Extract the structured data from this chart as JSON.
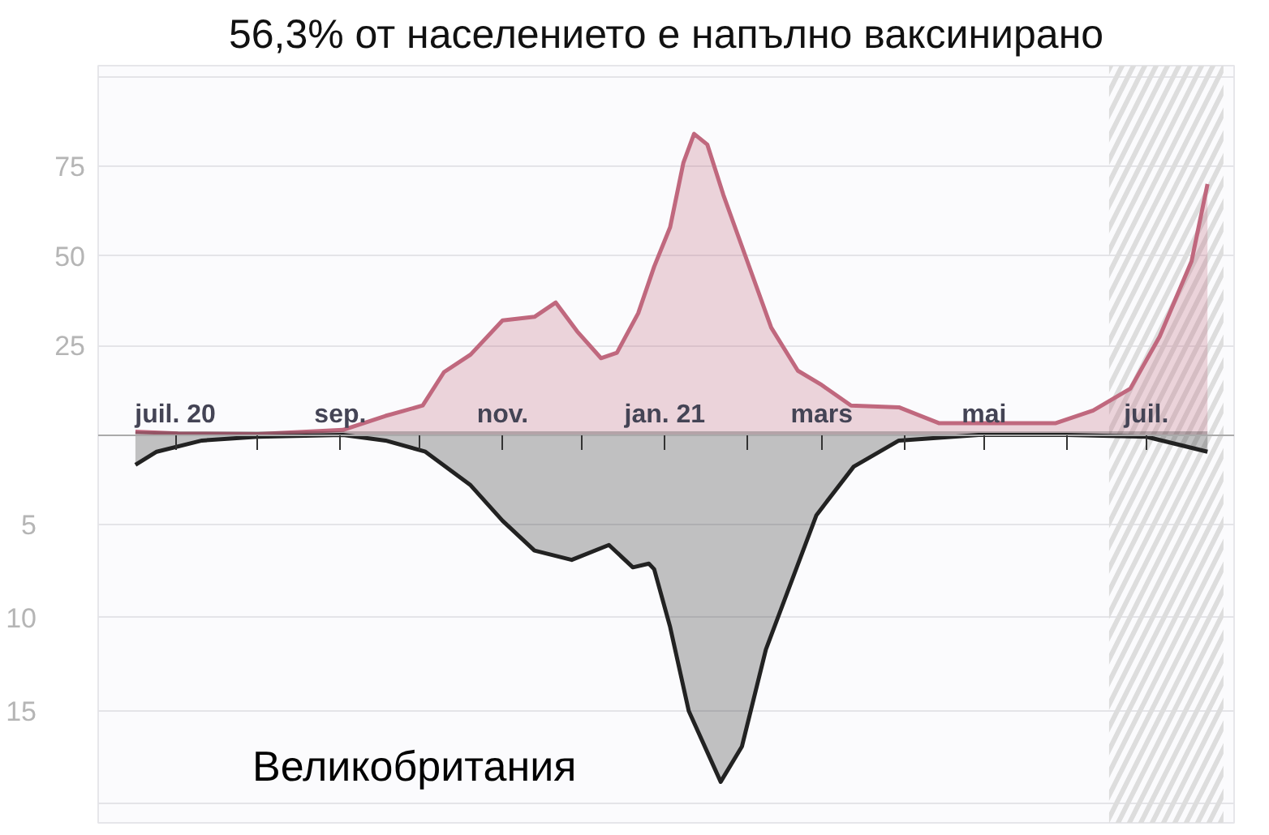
{
  "chart_data": {
    "type": "area",
    "title": "56,3% от населението е напълно ваксинирано",
    "annotations": [
      "Великобритания"
    ],
    "xlim": [
      "2020-06-02",
      "2021-08-03"
    ],
    "xticks": [
      {
        "value": "2020-07-01",
        "label": "juil. 20"
      },
      {
        "value": "2020-08-01",
        "label": null
      },
      {
        "value": "2020-09-01",
        "label": "sep."
      },
      {
        "value": "2020-10-01",
        "label": null
      },
      {
        "value": "2020-11-01",
        "label": "nov."
      },
      {
        "value": "2020-12-01",
        "label": null
      },
      {
        "value": "2021-01-01",
        "label": "jan. 21"
      },
      {
        "value": "2021-02-01",
        "label": null
      },
      {
        "value": "2021-03-01",
        "label": "mars"
      },
      {
        "value": "2021-04-01",
        "label": null
      },
      {
        "value": "2021-05-01",
        "label": "mai"
      },
      {
        "value": "2021-06-01",
        "label": null
      },
      {
        "value": "2021-07-01",
        "label": "juil."
      }
    ],
    "ylim": [
      -108,
      103
    ],
    "yticks": [
      {
        "value": 0,
        "label": null
      },
      25,
      50,
      75,
      {
        "value": 100,
        "label": null
      }
    ],
    "y2lim": [
      21,
      -19.6
    ],
    "y2ticks": [
      5,
      10,
      15,
      {
        "value": 20,
        "label": null
      }
    ],
    "grid": "y",
    "bands": [
      {
        "axis": "x",
        "from": "2021-06-17",
        "to": "2021-07-30",
        "color": "#dddddd"
      }
    ],
    "series": [
      {
        "color": "#c0687e",
        "x": [
          "2020-06-16",
          "2020-07-02",
          "2020-08-01",
          "2020-09-02",
          "2020-09-18",
          "2020-10-02",
          "2020-10-10",
          "2020-10-20",
          "2020-11-01",
          "2020-11-13",
          "2020-11-21",
          "2020-11-29",
          "2020-12-08",
          "2020-12-14",
          "2020-12-22",
          "2020-12-28",
          "2021-01-03",
          "2021-01-08",
          "2021-01-12",
          "2021-01-17",
          "2021-01-23",
          "2021-02-01",
          "2021-02-10",
          "2021-02-20",
          "2021-03-01",
          "2021-03-12",
          "2021-03-30",
          "2021-04-14",
          "2021-05-12",
          "2021-05-28",
          "2021-06-11",
          "2021-06-25",
          "2021-07-06",
          "2021-07-18",
          "2021-07-24"
        ],
        "values": [
          1,
          0.5,
          0.3,
          1.5,
          5.4,
          8.3,
          17.6,
          22.5,
          32,
          33,
          37,
          29,
          21.5,
          23,
          34,
          47,
          58,
          76,
          84,
          81,
          67,
          48.5,
          30,
          18,
          14,
          8.3,
          7.8,
          3.4,
          3.4,
          3.4,
          6.9,
          13,
          27.5,
          48.5,
          70
        ]
      },
      {
        "axis": "y2",
        "color": "#222222",
        "x": [
          "2020-06-16",
          "2020-06-24",
          "2020-07-11",
          "2020-08-01",
          "2020-09-02",
          "2020-09-18",
          "2020-10-03",
          "2020-10-20",
          "2020-11-01",
          "2020-11-13",
          "2020-11-27",
          "2020-12-11",
          "2020-12-20",
          "2020-12-26",
          "2020-12-28",
          "2021-01-03",
          "2021-01-10",
          "2021-01-22",
          "2021-01-30",
          "2021-02-08",
          "2021-02-27",
          "2021-03-13",
          "2021-03-30",
          "2021-04-29",
          "2021-06-01",
          "2021-07-01",
          "2021-07-24"
        ],
        "values": [
          1.8,
          1.1,
          0.5,
          0.3,
          0.2,
          0.5,
          1.1,
          2.9,
          4.8,
          6.4,
          6.9,
          6.1,
          7.3,
          7.1,
          7.4,
          10.5,
          15,
          18.8,
          16.9,
          11.7,
          4.5,
          1.9,
          0.5,
          0.2,
          0.2,
          0.3,
          1.1
        ]
      }
    ]
  }
}
